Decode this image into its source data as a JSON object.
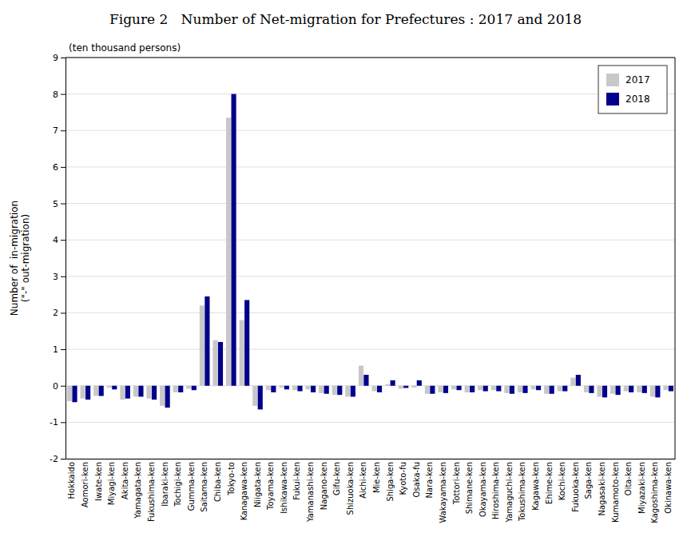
{
  "chart_data": {
    "type": "bar",
    "title": "Figure 2   Number of Net-migration for Prefectures : 2017 and 2018",
    "subtitle": "(ten thousand persons)",
    "ylabel": [
      "Number of  in-migration",
      "(\"-\" out-migration)"
    ],
    "categories": [
      "Hokkaido",
      "Aomori-ken",
      "Iwate-ken",
      "Miyagi-ken",
      "Akita-ken",
      "Yamagata-ken",
      "Fukushima-ken",
      "Ibaraki-ken",
      "Tochigi-ken",
      "Gumma-ken",
      "Saitama-ken",
      "Chiba-ken",
      "Tokyo-to",
      "Kanagawa-ken",
      "Niigata-ken",
      "Toyama-ken",
      "Ishikawa-ken",
      "Fukui-ken",
      "Yamanashi-ken",
      "Nagano-ken",
      "Gifu-ken",
      "Shizuoka-ken",
      "Aichi-ken",
      "Mie-ken",
      "Shiga-ken",
      "Kyoto-fu",
      "Osaka-fu",
      "Nara-ken",
      "Wakayama-ken",
      "Tottori-ken",
      "Shimane-ken",
      "Okayama-ken",
      "Hiroshima-ken",
      "Yamaguchi-ken",
      "Tokushima-ken",
      "Kagawa-ken",
      "Ehime-ken",
      "Kochi-ken",
      "Fukuoka-ken",
      "Saga-ken",
      "Nagasaki-ken",
      "Kumamoto-ken",
      "Oita-ken",
      "Miyazaki-ken",
      "Kagoshima-ken",
      "Okinawa-ken"
    ],
    "series": [
      {
        "name": "2017",
        "color": "#c8c8c8",
        "values": [
          -0.42,
          -0.35,
          -0.28,
          -0.05,
          -0.38,
          -0.3,
          -0.35,
          -0.55,
          -0.18,
          -0.08,
          2.2,
          1.25,
          7.35,
          1.8,
          -0.55,
          -0.12,
          -0.05,
          -0.12,
          -0.1,
          -0.2,
          -0.25,
          -0.3,
          0.55,
          -0.15,
          0.04,
          -0.08,
          -0.05,
          -0.22,
          -0.18,
          -0.1,
          -0.18,
          -0.12,
          -0.12,
          -0.2,
          -0.18,
          -0.1,
          -0.22,
          -0.15,
          0.22,
          -0.18,
          -0.3,
          -0.22,
          -0.15,
          -0.18,
          -0.3,
          -0.12
        ]
      },
      {
        "name": "2018",
        "color": "#00008b",
        "values": [
          -0.45,
          -0.38,
          -0.28,
          -0.1,
          -0.35,
          -0.3,
          -0.38,
          -0.6,
          -0.18,
          -0.12,
          2.45,
          1.2,
          8.0,
          2.35,
          -0.65,
          -0.18,
          -0.1,
          -0.15,
          -0.18,
          -0.22,
          -0.25,
          -0.3,
          0.3,
          -0.18,
          0.15,
          -0.06,
          0.15,
          -0.22,
          -0.2,
          -0.12,
          -0.18,
          -0.15,
          -0.15,
          -0.22,
          -0.2,
          -0.12,
          -0.22,
          -0.15,
          0.3,
          -0.2,
          -0.32,
          -0.25,
          -0.18,
          -0.2,
          -0.32,
          -0.15
        ]
      }
    ],
    "ylim": [
      -2,
      9
    ],
    "yticks": [
      -2,
      -1,
      0,
      1,
      2,
      3,
      4,
      5,
      6,
      7,
      8,
      9
    ],
    "grid": true,
    "legend": "upper right"
  }
}
